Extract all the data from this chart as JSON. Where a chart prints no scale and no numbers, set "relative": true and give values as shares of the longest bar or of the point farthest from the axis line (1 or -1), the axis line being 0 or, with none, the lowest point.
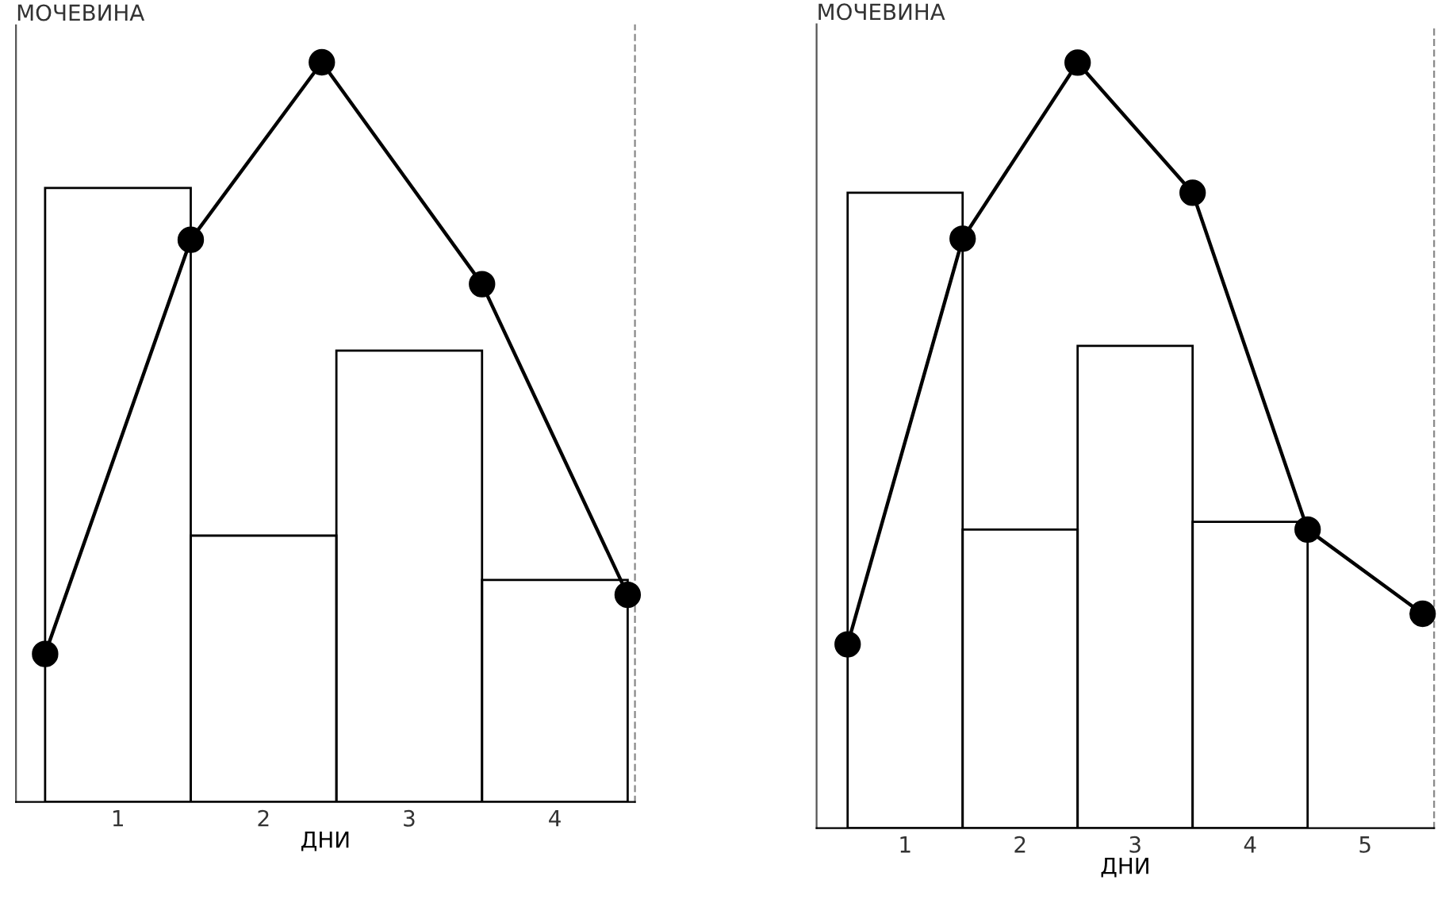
{
  "chart_data": [
    {
      "type": "bar",
      "ylabel": "МОЧЕВИНА",
      "xlabel": "ДНИ",
      "relative": true,
      "xlim": [
        0.3,
        4.55
      ],
      "xticks": [
        1,
        2,
        3,
        4
      ],
      "grid": false,
      "legend": false,
      "x": [
        1,
        2,
        3,
        4
      ],
      "series": [
        {
          "color": "#000000",
          "values": [
            0.83,
            0.36,
            0.61,
            0.3
          ]
        },
        {
          "type": "line",
          "color": "#000000",
          "marker": "circle",
          "line_style": "solid",
          "x": [
            0.5,
            1.5,
            2.4,
            3.5,
            4.5
          ],
          "values": [
            0.2,
            0.76,
            1,
            0.7,
            0.28
          ]
        }
      ]
    },
    {
      "type": "bar",
      "ylabel": "МОЧЕВИНА",
      "xlabel": "ДНИ",
      "relative": true,
      "xlim": [
        0.23,
        5.6
      ],
      "xticks": [
        1,
        2,
        3,
        4,
        5
      ],
      "grid": false,
      "legend": false,
      "x": [
        1,
        2,
        3,
        4
      ],
      "series": [
        {
          "color": "#000000",
          "values": [
            0.83,
            0.39,
            0.63,
            0.4
          ]
        },
        {
          "type": "line",
          "color": "#000000",
          "marker": "circle",
          "line_style": "solid",
          "x": [
            0.5,
            1.5,
            2.5,
            3.5,
            4.5,
            5.5
          ],
          "values": [
            0.24,
            0.77,
            1,
            0.83,
            0.39,
            0.28
          ]
        }
      ]
    }
  ]
}
